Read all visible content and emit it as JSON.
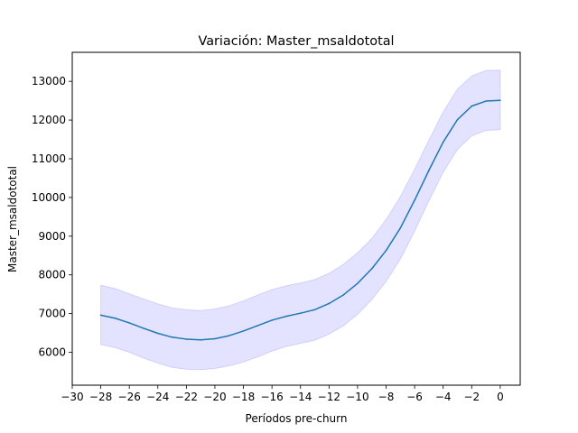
{
  "chart_data": {
    "type": "line",
    "title": "Variación: Master_msaldototal",
    "xlabel": "Períodos pre-churn",
    "ylabel": "Master_msaldototal",
    "xlim": [
      -30,
      1.4
    ],
    "ylim": [
      5150,
      13750
    ],
    "x_ticks": [
      "−30",
      "−28",
      "−26",
      "−24",
      "−22",
      "−20",
      "−18",
      "−16",
      "−14",
      "−12",
      "−10",
      "−8",
      "−6",
      "−4",
      "−2",
      "0"
    ],
    "x_tick_values": [
      -30,
      -28,
      -26,
      -24,
      -22,
      -20,
      -18,
      -16,
      -14,
      -12,
      -10,
      -8,
      -6,
      -4,
      -2,
      0
    ],
    "y_ticks": [
      "6000",
      "7000",
      "8000",
      "9000",
      "10000",
      "11000",
      "12000",
      "13000"
    ],
    "y_tick_values": [
      6000,
      7000,
      8000,
      9000,
      10000,
      11000,
      12000,
      13000
    ],
    "grid": false,
    "series": [
      {
        "color": "#1f77b4",
        "band_color": "#0000ff",
        "x": [
          -28,
          -27,
          -26,
          -25,
          -24,
          -23,
          -22,
          -21,
          -20,
          -19,
          -18,
          -17,
          -16,
          -15,
          -14,
          -13,
          -12,
          -11,
          -10,
          -9,
          -8,
          -7,
          -6,
          -5,
          -4,
          -3,
          -2,
          -1,
          0
        ],
        "y": [
          6960,
          6880,
          6760,
          6620,
          6490,
          6390,
          6340,
          6320,
          6350,
          6430,
          6550,
          6690,
          6830,
          6930,
          7010,
          7100,
          7260,
          7480,
          7780,
          8160,
          8630,
          9210,
          9930,
          10700,
          11430,
          12010,
          12360,
          12490,
          12510
        ],
        "lower": [
          6200,
          6120,
          6000,
          5850,
          5720,
          5610,
          5560,
          5550,
          5580,
          5650,
          5750,
          5880,
          6030,
          6150,
          6230,
          6310,
          6470,
          6680,
          6980,
          7360,
          7830,
          8410,
          9130,
          9910,
          10650,
          11240,
          11590,
          11730,
          11750
        ],
        "upper": [
          7730,
          7650,
          7510,
          7380,
          7250,
          7150,
          7100,
          7080,
          7120,
          7200,
          7330,
          7480,
          7620,
          7720,
          7790,
          7880,
          8040,
          8270,
          8570,
          8940,
          9430,
          10020,
          10730,
          11480,
          12210,
          12800,
          13140,
          13280,
          13290
        ]
      }
    ]
  }
}
